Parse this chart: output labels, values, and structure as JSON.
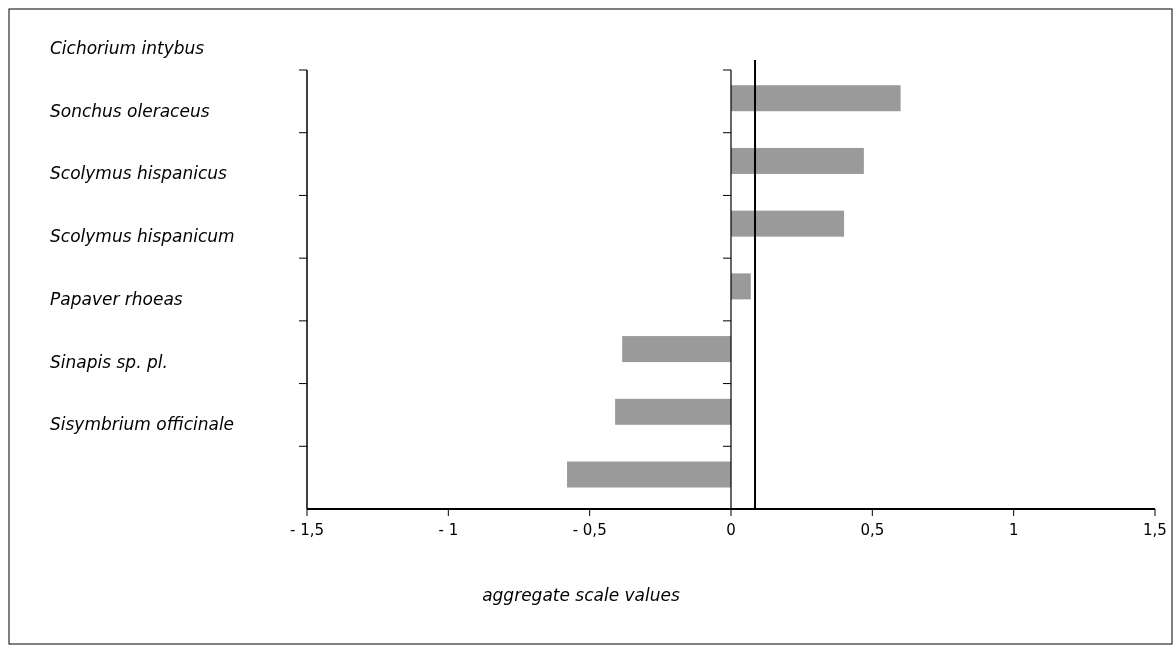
{
  "chart_data": {
    "type": "bar",
    "orientation": "horizontal",
    "xlabel": "aggregate scale values",
    "categories": [
      "Cichorium intybus",
      "Sonchus oleraceus",
      "Scolymus hispanicus",
      "Scolymus hispanicum",
      "Papaver rhoeas",
      "Sinapis sp. pl.",
      "Sisymbrium officinale"
    ],
    "values": [
      0.6,
      0.47,
      0.4,
      0.07,
      -0.385,
      -0.41,
      -0.58
    ],
    "color": "#9a9a9a",
    "xlim": [
      -1.5,
      1.5
    ],
    "xticks": [
      {
        "value": -1.5,
        "label": "- 1,5"
      },
      {
        "value": -1,
        "label": "- 1"
      },
      {
        "value": -0.5,
        "label": "- 0,5"
      },
      0,
      {
        "value": 0.5,
        "label": "0,5"
      },
      1,
      {
        "value": 1.5,
        "label": "1,5"
      }
    ],
    "ref_lines": [
      {
        "axis": "x",
        "value": 0.085,
        "color": "#000000"
      }
    ]
  }
}
